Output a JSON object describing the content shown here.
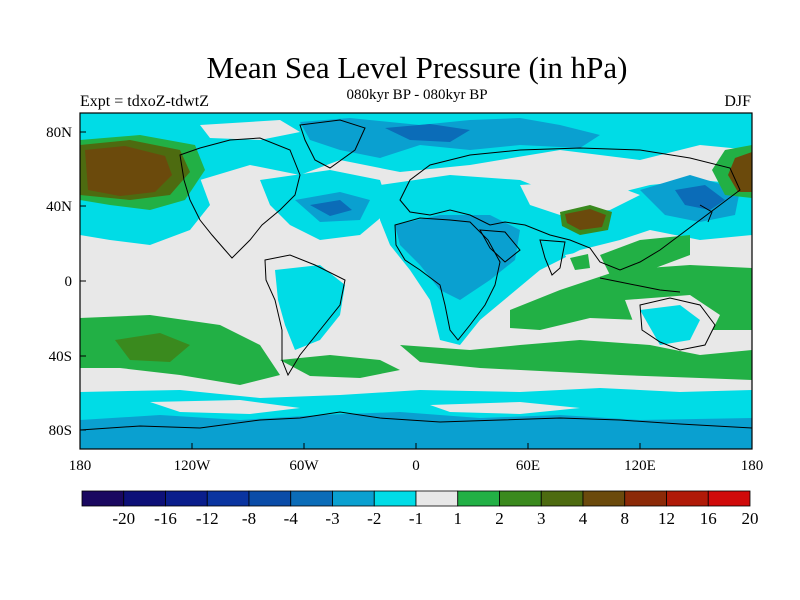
{
  "map": {
    "title": "Mean Sea Level Pressure (in hPa)",
    "subtitle": "080kyr BP - 080kyr BP",
    "experiment": "Expt = tdxoZ-tdwtZ",
    "season": "DJF",
    "x_ticks": [
      "180",
      "120W",
      "60W",
      "0",
      "60E",
      "120E",
      "180"
    ],
    "y_ticks": [
      "80N",
      "40N",
      "0",
      "40S",
      "80S"
    ],
    "colorbar": {
      "labels": [
        "-20",
        "-16",
        "-12",
        "-8",
        "-4",
        "-3",
        "-2",
        "-1",
        "1",
        "2",
        "3",
        "4",
        "8",
        "12",
        "16",
        "20"
      ],
      "colors": [
        "#1a0860",
        "#0d1078",
        "#0a1e8c",
        "#0a34a0",
        "#0a4ca8",
        "#0b6cb8",
        "#0aa0d0",
        "#00dce6",
        "#e8e8e8",
        "#22b045",
        "#3a8a1e",
        "#4d6b10",
        "#6b4a0c",
        "#8c2a08",
        "#b01a08",
        "#d00a0a"
      ]
    }
  }
}
